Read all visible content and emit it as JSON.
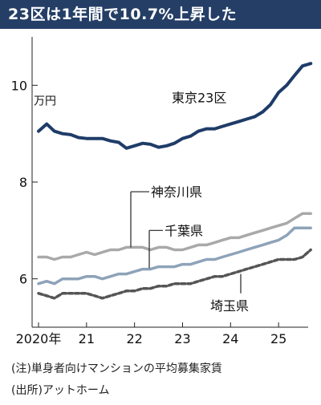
{
  "title": "23区は1年間で10.7%上昇した",
  "notes": [
    "(注)単身者向けマンションの平均募集家賃",
    "(出所)アットホーム"
  ],
  "colors": {
    "title_bg": "#243e66",
    "tokyo": "#1f3c68",
    "kanagawa": "#a9a9a9",
    "chiba": "#8ea3b9",
    "saitama": "#555555"
  },
  "chart_data": {
    "type": "line",
    "title": "23区は1年間で10.7%上昇した",
    "ylabel": "万円",
    "xlabel": "",
    "ylim": [
      5.0,
      11.0
    ],
    "yticks": [
      6,
      8,
      10
    ],
    "ytick_labels": [
      "6",
      "8",
      "10"
    ],
    "xlim": [
      2020.0,
      2025.75
    ],
    "xticks": [
      2020,
      2021,
      2022,
      2023,
      2024,
      2025
    ],
    "xtick_labels": [
      "2020年",
      "21",
      "22",
      "23",
      "24",
      "25"
    ],
    "grid": false,
    "legend": "inline labels",
    "series": [
      {
        "name": "東京23区",
        "style": "solid",
        "points": [
          [
            2020.0,
            9.05
          ],
          [
            2020.17,
            9.2
          ],
          [
            2020.33,
            9.05
          ],
          [
            2020.5,
            9.0
          ],
          [
            2020.67,
            8.98
          ],
          [
            2020.83,
            8.92
          ],
          [
            2021.0,
            8.9
          ],
          [
            2021.17,
            8.9
          ],
          [
            2021.33,
            8.9
          ],
          [
            2021.5,
            8.85
          ],
          [
            2021.67,
            8.82
          ],
          [
            2021.83,
            8.7
          ],
          [
            2022.0,
            8.75
          ],
          [
            2022.17,
            8.8
          ],
          [
            2022.33,
            8.78
          ],
          [
            2022.5,
            8.72
          ],
          [
            2022.67,
            8.75
          ],
          [
            2022.83,
            8.8
          ],
          [
            2023.0,
            8.9
          ],
          [
            2023.17,
            8.95
          ],
          [
            2023.33,
            9.05
          ],
          [
            2023.5,
            9.1
          ],
          [
            2023.67,
            9.1
          ],
          [
            2023.83,
            9.15
          ],
          [
            2024.0,
            9.2
          ],
          [
            2024.17,
            9.25
          ],
          [
            2024.33,
            9.3
          ],
          [
            2024.5,
            9.35
          ],
          [
            2024.67,
            9.45
          ],
          [
            2024.83,
            9.6
          ],
          [
            2025.0,
            9.85
          ],
          [
            2025.17,
            10.0
          ],
          [
            2025.33,
            10.2
          ],
          [
            2025.5,
            10.4
          ],
          [
            2025.67,
            10.45
          ]
        ]
      },
      {
        "name": "神奈川県",
        "style": "solid",
        "points": [
          [
            2020.0,
            6.45
          ],
          [
            2020.17,
            6.45
          ],
          [
            2020.33,
            6.4
          ],
          [
            2020.5,
            6.45
          ],
          [
            2020.67,
            6.45
          ],
          [
            2020.83,
            6.5
          ],
          [
            2021.0,
            6.55
          ],
          [
            2021.17,
            6.5
          ],
          [
            2021.33,
            6.55
          ],
          [
            2021.5,
            6.6
          ],
          [
            2021.67,
            6.6
          ],
          [
            2021.83,
            6.65
          ],
          [
            2022.0,
            6.65
          ],
          [
            2022.17,
            6.65
          ],
          [
            2022.33,
            6.6
          ],
          [
            2022.5,
            6.65
          ],
          [
            2022.67,
            6.65
          ],
          [
            2022.83,
            6.6
          ],
          [
            2023.0,
            6.6
          ],
          [
            2023.17,
            6.65
          ],
          [
            2023.33,
            6.7
          ],
          [
            2023.5,
            6.7
          ],
          [
            2023.67,
            6.75
          ],
          [
            2023.83,
            6.8
          ],
          [
            2024.0,
            6.85
          ],
          [
            2024.17,
            6.85
          ],
          [
            2024.33,
            6.9
          ],
          [
            2024.5,
            6.95
          ],
          [
            2024.67,
            7.0
          ],
          [
            2024.83,
            7.05
          ],
          [
            2025.0,
            7.1
          ],
          [
            2025.17,
            7.15
          ],
          [
            2025.33,
            7.25
          ],
          [
            2025.5,
            7.35
          ],
          [
            2025.67,
            7.35
          ]
        ]
      },
      {
        "name": "千葉県",
        "style": "solid",
        "points": [
          [
            2020.0,
            5.9
          ],
          [
            2020.17,
            5.95
          ],
          [
            2020.33,
            5.9
          ],
          [
            2020.5,
            6.0
          ],
          [
            2020.67,
            6.0
          ],
          [
            2020.83,
            6.0
          ],
          [
            2021.0,
            6.05
          ],
          [
            2021.17,
            6.05
          ],
          [
            2021.33,
            6.0
          ],
          [
            2021.5,
            6.05
          ],
          [
            2021.67,
            6.1
          ],
          [
            2021.83,
            6.1
          ],
          [
            2022.0,
            6.15
          ],
          [
            2022.17,
            6.2
          ],
          [
            2022.33,
            6.2
          ],
          [
            2022.5,
            6.25
          ],
          [
            2022.67,
            6.25
          ],
          [
            2022.83,
            6.25
          ],
          [
            2023.0,
            6.3
          ],
          [
            2023.17,
            6.3
          ],
          [
            2023.33,
            6.35
          ],
          [
            2023.5,
            6.4
          ],
          [
            2023.67,
            6.4
          ],
          [
            2023.83,
            6.45
          ],
          [
            2024.0,
            6.5
          ],
          [
            2024.17,
            6.55
          ],
          [
            2024.33,
            6.6
          ],
          [
            2024.5,
            6.65
          ],
          [
            2024.67,
            6.7
          ],
          [
            2024.83,
            6.75
          ],
          [
            2025.0,
            6.8
          ],
          [
            2025.17,
            6.9
          ],
          [
            2025.33,
            7.05
          ],
          [
            2025.5,
            7.05
          ],
          [
            2025.67,
            7.05
          ]
        ]
      },
      {
        "name": "埼玉県",
        "style": "dashed",
        "points": [
          [
            2020.0,
            5.7
          ],
          [
            2020.17,
            5.65
          ],
          [
            2020.33,
            5.6
          ],
          [
            2020.5,
            5.7
          ],
          [
            2020.67,
            5.7
          ],
          [
            2020.83,
            5.7
          ],
          [
            2021.0,
            5.7
          ],
          [
            2021.17,
            5.65
          ],
          [
            2021.33,
            5.6
          ],
          [
            2021.5,
            5.65
          ],
          [
            2021.67,
            5.7
          ],
          [
            2021.83,
            5.75
          ],
          [
            2022.0,
            5.75
          ],
          [
            2022.17,
            5.8
          ],
          [
            2022.33,
            5.8
          ],
          [
            2022.5,
            5.85
          ],
          [
            2022.67,
            5.85
          ],
          [
            2022.83,
            5.9
          ],
          [
            2023.0,
            5.9
          ],
          [
            2023.17,
            5.9
          ],
          [
            2023.33,
            5.95
          ],
          [
            2023.5,
            6.0
          ],
          [
            2023.67,
            6.05
          ],
          [
            2023.83,
            6.05
          ],
          [
            2024.0,
            6.1
          ],
          [
            2024.17,
            6.15
          ],
          [
            2024.33,
            6.2
          ],
          [
            2024.5,
            6.25
          ],
          [
            2024.67,
            6.3
          ],
          [
            2024.83,
            6.35
          ],
          [
            2025.0,
            6.4
          ],
          [
            2025.17,
            6.4
          ],
          [
            2025.33,
            6.4
          ],
          [
            2025.5,
            6.45
          ],
          [
            2025.67,
            6.6
          ]
        ]
      }
    ]
  }
}
